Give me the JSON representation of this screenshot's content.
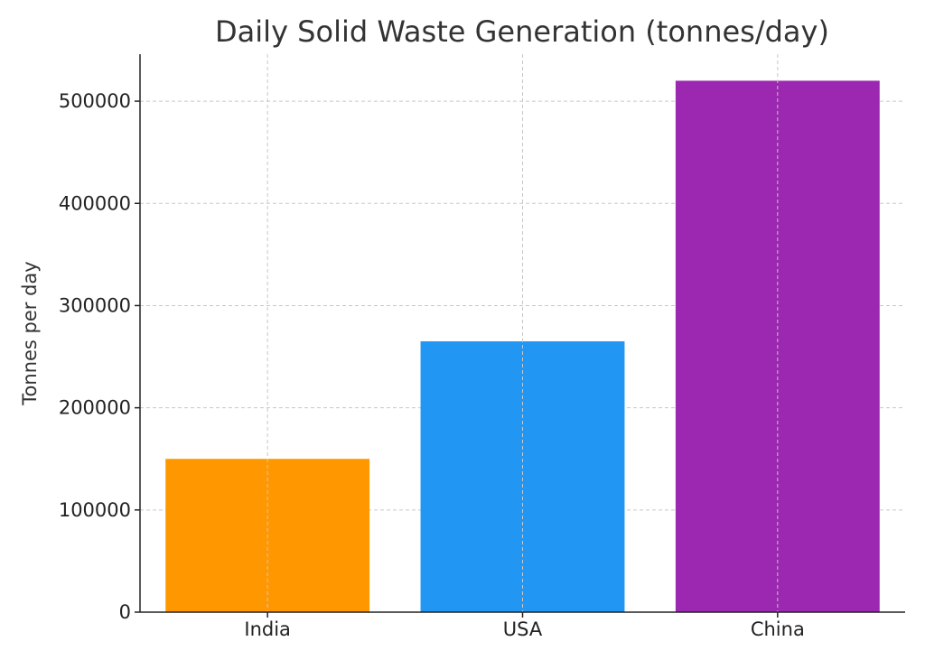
{
  "chart_data": {
    "type": "bar",
    "title": "Daily Solid Waste Generation (tonnes/day)",
    "xlabel": "",
    "ylabel": "Tonnes per day",
    "categories": [
      "India",
      "USA",
      "China"
    ],
    "values": [
      150000,
      265000,
      520000
    ],
    "colors": [
      "#FF9800",
      "#2196F3",
      "#9C27B0"
    ],
    "ylim": [
      0,
      546000
    ],
    "yticks": [
      0,
      100000,
      200000,
      300000,
      400000,
      500000
    ],
    "ytick_labels": [
      "0",
      "100000",
      "200000",
      "300000",
      "400000",
      "500000"
    ],
    "grid": true
  }
}
